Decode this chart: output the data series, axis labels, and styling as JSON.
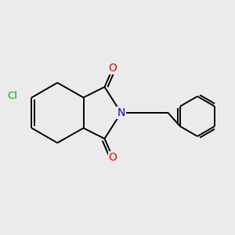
{
  "bg_color": "#ebebeb",
  "line_color": "#000000",
  "atom_colors": {
    "O": "#ff0000",
    "N": "#0000ff",
    "Cl": "#00aa00"
  },
  "bond_width": 1.4,
  "figsize": [
    3.0,
    3.0
  ],
  "dpi": 100,
  "xlim": [
    0,
    10
  ],
  "ylim": [
    0,
    10
  ]
}
